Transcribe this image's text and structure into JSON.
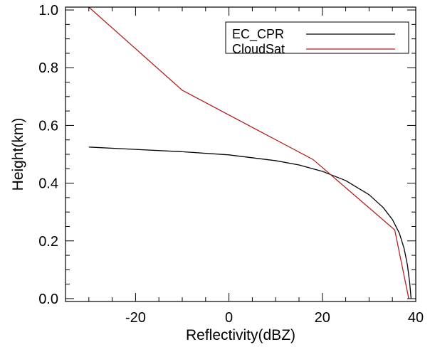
{
  "chart_data": {
    "type": "line",
    "xlabel": "Reflectivity(dBZ)",
    "ylabel": "Height(km)",
    "xlim": [
      -35,
      40
    ],
    "ylim": [
      -0.01,
      1.01
    ],
    "x_ticks": [
      -20,
      0,
      20,
      40
    ],
    "y_ticks": [
      0.0,
      0.2,
      0.4,
      0.6,
      0.8,
      1.0
    ],
    "x_tick_labels": [
      "-20",
      "0",
      "20",
      "40"
    ],
    "y_tick_labels": [
      "0.0",
      "0.2",
      "0.4",
      "0.6",
      "0.8",
      "1.0"
    ],
    "grid": false,
    "legend_position": "top-right",
    "series": [
      {
        "name": "EC_CPR",
        "color": "#000000",
        "x": [
          -30,
          -20,
          -10,
          0,
          10,
          15,
          20,
          25,
          30,
          33,
          35,
          36.5,
          37.5,
          38.2,
          38.7,
          39.0
        ],
        "y": [
          0.525,
          0.517,
          0.509,
          0.498,
          0.478,
          0.463,
          0.441,
          0.409,
          0.36,
          0.316,
          0.274,
          0.226,
          0.174,
          0.118,
          0.055,
          0.0
        ]
      },
      {
        "name": "CloudSat",
        "color": "#b22222",
        "x": [
          -30,
          -10,
          18,
          35.5,
          38.5
        ],
        "y": [
          1.01,
          0.722,
          0.482,
          0.238,
          0.0
        ]
      }
    ]
  }
}
